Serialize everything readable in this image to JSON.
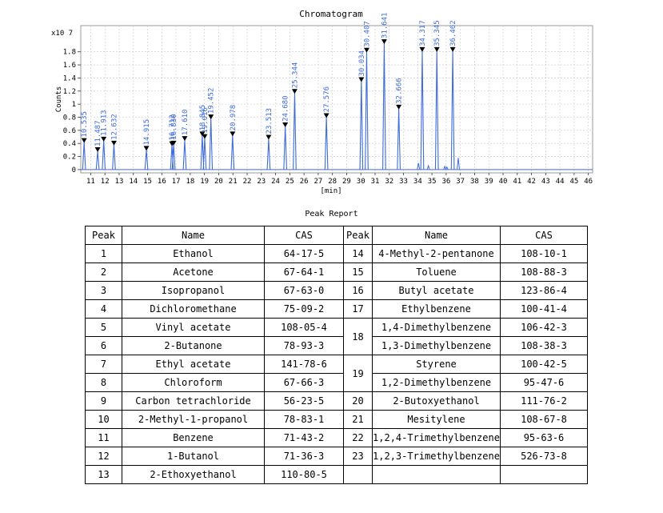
{
  "chart_data": {
    "type": "line",
    "title": "Chromatogram",
    "xlabel": "[min]",
    "ylabel": "Counts",
    "y_multiplier": "x10 7",
    "xlim": [
      10.3,
      46.3
    ],
    "ylim": [
      -0.05,
      2.2
    ],
    "x_ticks": [
      11,
      12,
      13,
      14,
      15,
      16,
      17,
      18,
      19,
      20,
      21,
      22,
      23,
      24,
      25,
      26,
      27,
      28,
      29,
      30,
      31,
      32,
      33,
      34,
      35,
      36,
      37,
      38,
      39,
      40,
      41,
      42,
      43,
      44,
      45,
      46
    ],
    "y_ticks": [
      0,
      0.2,
      0.4,
      0.6,
      0.8,
      1,
      1.2,
      1.4,
      1.6,
      1.8
    ],
    "y_tick_labels": [
      "0",
      "0.2",
      "0.4",
      "0.6",
      "0.8",
      "1",
      "1.2",
      "1.4",
      "1.6",
      "1.8"
    ],
    "grid": true,
    "peaks": [
      {
        "rt": 10.535,
        "label": "10.535",
        "height": 0.42
      },
      {
        "rt": 11.487,
        "label": "11.487",
        "height": 0.28
      },
      {
        "rt": 11.913,
        "label": "11.913",
        "height": 0.44
      },
      {
        "rt": 12.632,
        "label": "12.632",
        "height": 0.38
      },
      {
        "rt": 14.915,
        "label": "14.915",
        "height": 0.3
      },
      {
        "rt": 16.712,
        "label": "16.712",
        "height": 0.37
      },
      {
        "rt": 16.83,
        "label": "16.830",
        "height": 0.38
      },
      {
        "rt": 17.61,
        "label": "17.610",
        "height": 0.45
      },
      {
        "rt": 18.845,
        "label": "18.845",
        "height": 0.52
      },
      {
        "rt": 19.016,
        "label": "19.016",
        "height": 0.48
      },
      {
        "rt": 19.452,
        "label": "19.452",
        "height": 0.78
      },
      {
        "rt": 20.978,
        "label": "20.978",
        "height": 0.52
      },
      {
        "rt": 23.513,
        "label": "23.513",
        "height": 0.47
      },
      {
        "rt": 24.68,
        "label": "24.680",
        "height": 0.66
      },
      {
        "rt": 25.344,
        "label": "25.344",
        "height": 1.17
      },
      {
        "rt": 27.576,
        "label": "27.576",
        "height": 0.8
      },
      {
        "rt": 30.034,
        "label": "30.034",
        "height": 1.35
      },
      {
        "rt": 30.407,
        "label": "30.407",
        "height": 1.8
      },
      {
        "rt": 31.641,
        "label": "31.641",
        "height": 1.93
      },
      {
        "rt": 32.666,
        "label": "32.666",
        "height": 0.93
      },
      {
        "rt": 34.317,
        "label": "34.317",
        "height": 1.81
      },
      {
        "rt": 35.345,
        "label": "35.345",
        "height": 1.81
      },
      {
        "rt": 36.462,
        "label": "36.462",
        "height": 1.81
      }
    ],
    "minor_peaks": [
      {
        "rt": 34.05,
        "height": 0.1
      },
      {
        "rt": 34.75,
        "height": 0.06
      },
      {
        "rt": 35.9,
        "height": 0.05
      },
      {
        "rt": 36.05,
        "height": 0.04
      },
      {
        "rt": 36.85,
        "height": 0.18
      }
    ],
    "colors": {
      "signal": "#3f6cd9",
      "label": "#3f6cd9",
      "marker": "#000000",
      "grid": "#c8c8c8"
    }
  },
  "report": {
    "title": "Peak Report",
    "headers": [
      "Peak",
      "Name",
      "CAS",
      "Peak",
      "Name",
      "CAS"
    ],
    "left_rows": [
      {
        "peak": "1",
        "name": "Ethanol",
        "cas": "64-17-5"
      },
      {
        "peak": "2",
        "name": "Acetone",
        "cas": "67-64-1"
      },
      {
        "peak": "3",
        "name": "Isopropanol",
        "cas": "67-63-0"
      },
      {
        "peak": "4",
        "name": "Dichloromethane",
        "cas": "75-09-2"
      },
      {
        "peak": "5",
        "name": "Vinyl acetate",
        "cas": "108-05-4"
      },
      {
        "peak": "6",
        "name": "2-Butanone",
        "cas": "78-93-3"
      },
      {
        "peak": "7",
        "name": "Ethyl acetate",
        "cas": "141-78-6"
      },
      {
        "peak": "8",
        "name": "Chloroform",
        "cas": "67-66-3"
      },
      {
        "peak": "9",
        "name": "Carbon tetrachloride",
        "cas": "56-23-5"
      },
      {
        "peak": "10",
        "name": "2-Methyl-1-propanol",
        "cas": "78-83-1"
      },
      {
        "peak": "11",
        "name": "Benzene",
        "cas": "71-43-2"
      },
      {
        "peak": "12",
        "name": "1-Butanol",
        "cas": "71-36-3"
      },
      {
        "peak": "13",
        "name": "2-Ethoxyethanol",
        "cas": "110-80-5"
      }
    ],
    "right_rows": [
      {
        "peak": "14",
        "name": "4-Methyl-2-pentanone",
        "cas": "108-10-1"
      },
      {
        "peak": "15",
        "name": "Toluene",
        "cas": "108-88-3"
      },
      {
        "peak": "16",
        "name": "Butyl acetate",
        "cas": "123-86-4"
      },
      {
        "peak": "17",
        "name": "Ethylbenzene",
        "cas": "100-41-4"
      },
      {
        "peak": "18",
        "name": "1,4-Dimethylbenzene",
        "cas": "106-42-3"
      },
      {
        "peak": "",
        "name": "1,3-Dimethylbenzene",
        "cas": "108-38-3"
      },
      {
        "peak": "19",
        "name": "Styrene",
        "cas": "100-42-5"
      },
      {
        "peak": "",
        "name": "1,2-Dimethylbenzene",
        "cas": "95-47-6"
      },
      {
        "peak": "20",
        "name": "2-Butoxyethanol",
        "cas": "111-76-2"
      },
      {
        "peak": "21",
        "name": "Mesitylene",
        "cas": "108-67-8"
      },
      {
        "peak": "22",
        "name": "1,2,4-Trimethylbenzene",
        "cas": "95-63-6"
      },
      {
        "peak": "23",
        "name": "1,2,3-Trimethylbenzene",
        "cas": "526-73-8"
      },
      {
        "peak": "",
        "name": "",
        "cas": ""
      }
    ]
  }
}
